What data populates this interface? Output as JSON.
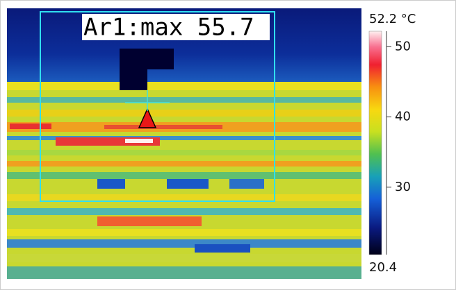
{
  "annotation": "Ar1:max 55.7",
  "scale": {
    "max_label": "52.2 °C",
    "min_label": "20.4",
    "max": 52.2,
    "min": 20.4,
    "ticks": [
      30,
      40,
      50
    ]
  }
}
